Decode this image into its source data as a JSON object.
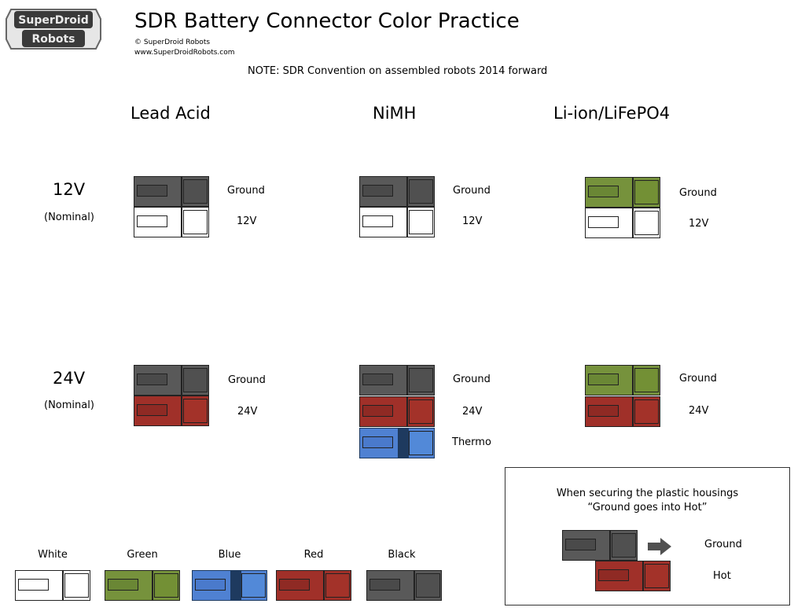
{
  "header": {
    "logo_line1": "SuperDroid",
    "logo_line2": "Robots",
    "title": "SDR Battery Connector Color Practice",
    "copyright": "© SuperDroid Robots",
    "website": "www.SuperDroidRobots.com",
    "note": "NOTE: SDR Convention on assembled robots 2014 forward"
  },
  "columns": [
    "Lead Acid",
    "NiMH",
    "Li-ion/LiFePO4"
  ],
  "rows": {
    "r12": {
      "voltage": "12V",
      "nominal": "(Nominal)"
    },
    "r24": {
      "voltage": "24V",
      "nominal": "(Nominal)"
    }
  },
  "labels": {
    "ground": "Ground",
    "v12": "12V",
    "v24": "24V",
    "thermo": "Thermo"
  },
  "swatches": [
    "White",
    "Green",
    "Blue",
    "Red",
    "Black"
  ],
  "callout": {
    "line1": "When securing the plastic housings",
    "line2": "“Ground goes into Hot”",
    "ground": "Ground",
    "hot": "Hot"
  },
  "colors": {
    "black": "#595959",
    "white": "#ffffff",
    "green": "#76923c",
    "red": "#a03029",
    "blue": "#4f81d2"
  }
}
